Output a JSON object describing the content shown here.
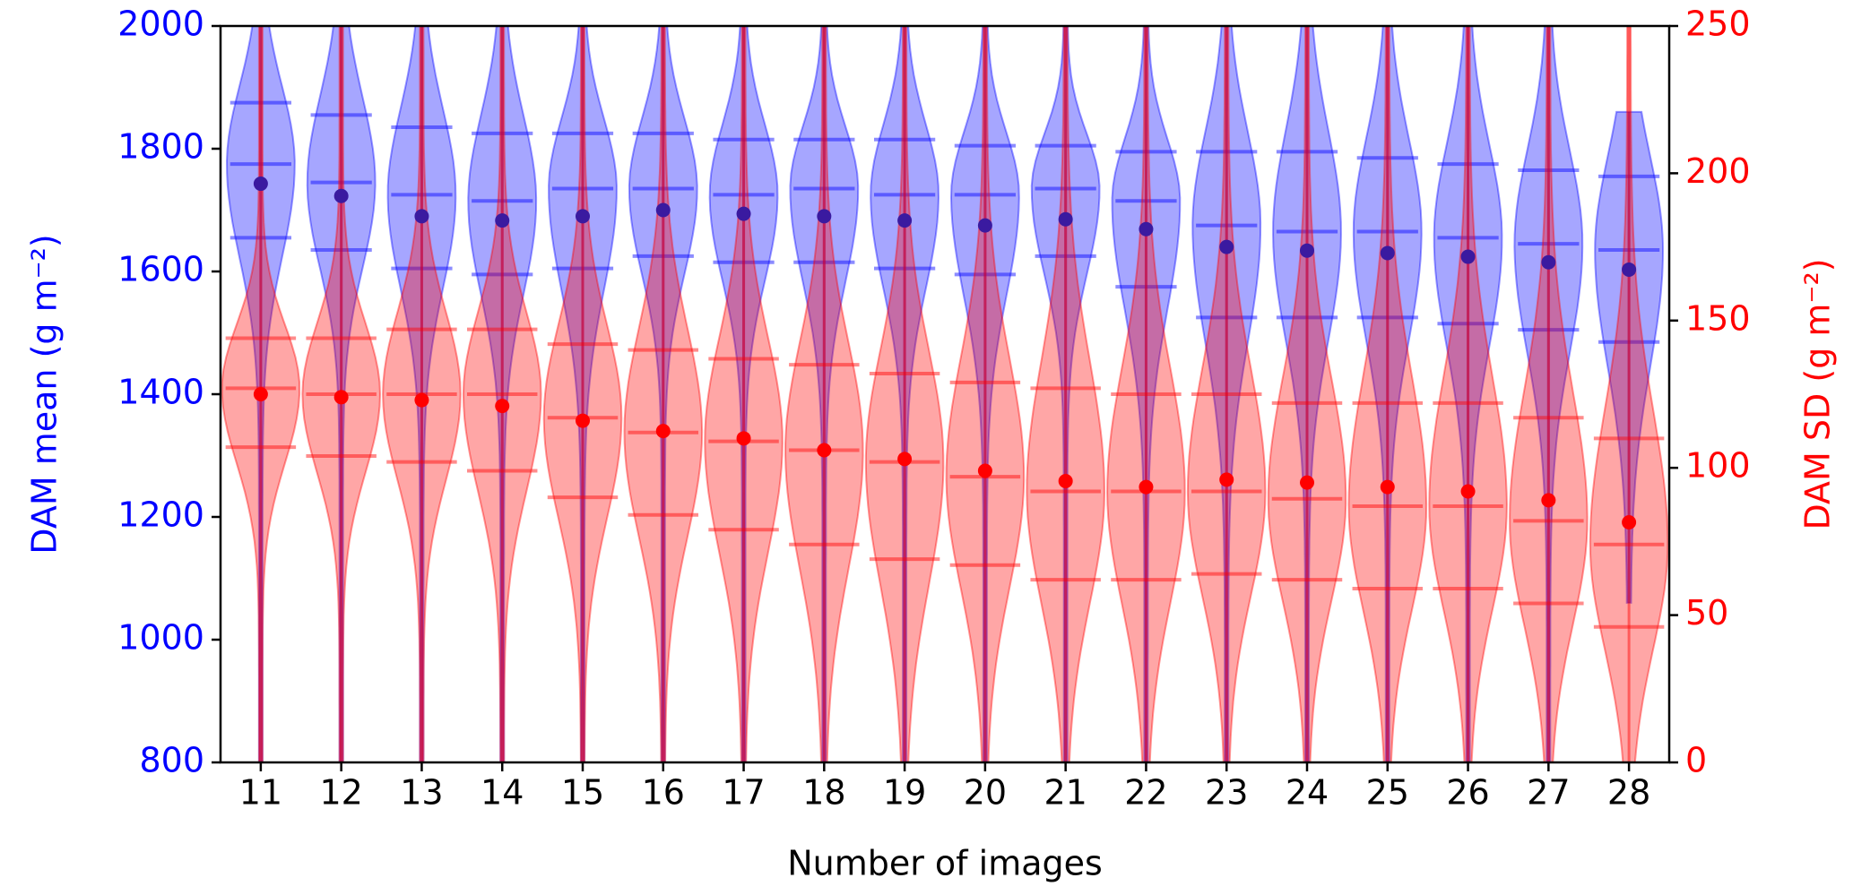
{
  "chart_data": {
    "type": "violin",
    "x_label": "Number of images",
    "y_label": "DAM mean (g m⁻²)",
    "y2_label": "DAM SD (g m⁻²)",
    "categories": [
      "11",
      "12",
      "13",
      "14",
      "15",
      "16",
      "17",
      "18",
      "19",
      "20",
      "21",
      "22",
      "23",
      "24",
      "25",
      "26",
      "27",
      "28"
    ],
    "ylim": [
      800,
      2000
    ],
    "yticks": [
      800,
      1000,
      1200,
      1400,
      1600,
      1800,
      2000
    ],
    "y2lim": [
      0,
      250
    ],
    "y2ticks": [
      0,
      50,
      100,
      150,
      200,
      250
    ],
    "series": [
      {
        "name": "DAM mean",
        "color": "#0000ff",
        "axis": "y",
        "values": [
          1743,
          1723,
          1690,
          1683,
          1690,
          1700,
          1694,
          1690,
          1683,
          1675,
          1685,
          1669,
          1640,
          1634,
          1630,
          1624,
          1615,
          1603
        ],
        "quantiles": [
          [
            1875,
            1775,
            1655
          ],
          [
            1855,
            1745,
            1635
          ],
          [
            1835,
            1725,
            1605
          ],
          [
            1825,
            1715,
            1595
          ],
          [
            1825,
            1735,
            1605
          ],
          [
            1825,
            1735,
            1625
          ],
          [
            1815,
            1725,
            1615
          ],
          [
            1815,
            1735,
            1615
          ],
          [
            1815,
            1725,
            1605
          ],
          [
            1805,
            1725,
            1595
          ],
          [
            1805,
            1735,
            1625
          ],
          [
            1795,
            1715,
            1575
          ],
          [
            1795,
            1675,
            1525
          ],
          [
            1795,
            1665,
            1525
          ],
          [
            1785,
            1665,
            1525
          ],
          [
            1775,
            1655,
            1515
          ],
          [
            1765,
            1645,
            1505
          ],
          [
            1755,
            1635,
            1485
          ]
        ],
        "ranges": [
          [
            800,
            2000
          ],
          [
            800,
            2000
          ],
          [
            800,
            2000
          ],
          [
            800,
            2000
          ],
          [
            800,
            2000
          ],
          [
            800,
            2000
          ],
          [
            800,
            2000
          ],
          [
            800,
            2000
          ],
          [
            800,
            2000
          ],
          [
            800,
            2000
          ],
          [
            800,
            2000
          ],
          [
            800,
            2000
          ],
          [
            800,
            2000
          ],
          [
            800,
            2000
          ],
          [
            800,
            2000
          ],
          [
            800,
            2000
          ],
          [
            800,
            2000
          ],
          [
            1060,
            1860
          ]
        ]
      },
      {
        "name": "DAM SD",
        "color": "#ff0000",
        "axis": "y2",
        "values": [
          125,
          124,
          123,
          121,
          116,
          112.5,
          110,
          106,
          103,
          99,
          95.5,
          93.5,
          96,
          95,
          93.5,
          92,
          89,
          81.5
        ],
        "quantiles": [
          [
            144,
            127,
            107
          ],
          [
            144,
            125,
            104
          ],
          [
            147,
            125,
            102
          ],
          [
            147,
            125,
            99
          ],
          [
            142,
            117,
            90
          ],
          [
            140,
            112,
            84
          ],
          [
            137,
            109,
            79
          ],
          [
            135,
            106,
            74
          ],
          [
            132,
            102,
            69
          ],
          [
            129,
            97,
            67
          ],
          [
            127,
            92,
            62
          ],
          [
            125,
            92,
            62
          ],
          [
            125,
            92,
            64
          ],
          [
            122,
            89.5,
            62
          ],
          [
            122,
            87,
            59
          ],
          [
            122,
            87,
            59
          ],
          [
            117,
            82,
            54
          ],
          [
            110,
            74,
            46
          ]
        ],
        "ranges": [
          [
            0,
            250
          ],
          [
            0,
            250
          ],
          [
            0,
            250
          ],
          [
            0,
            250
          ],
          [
            0,
            250
          ],
          [
            0,
            250
          ],
          [
            0,
            250
          ],
          [
            0,
            250
          ],
          [
            0,
            250
          ],
          [
            0,
            250
          ],
          [
            0,
            250
          ],
          [
            0,
            250
          ],
          [
            0,
            250
          ],
          [
            0,
            250
          ],
          [
            0,
            250
          ],
          [
            0,
            250
          ],
          [
            0,
            250
          ],
          [
            0,
            250
          ]
        ]
      }
    ]
  }
}
